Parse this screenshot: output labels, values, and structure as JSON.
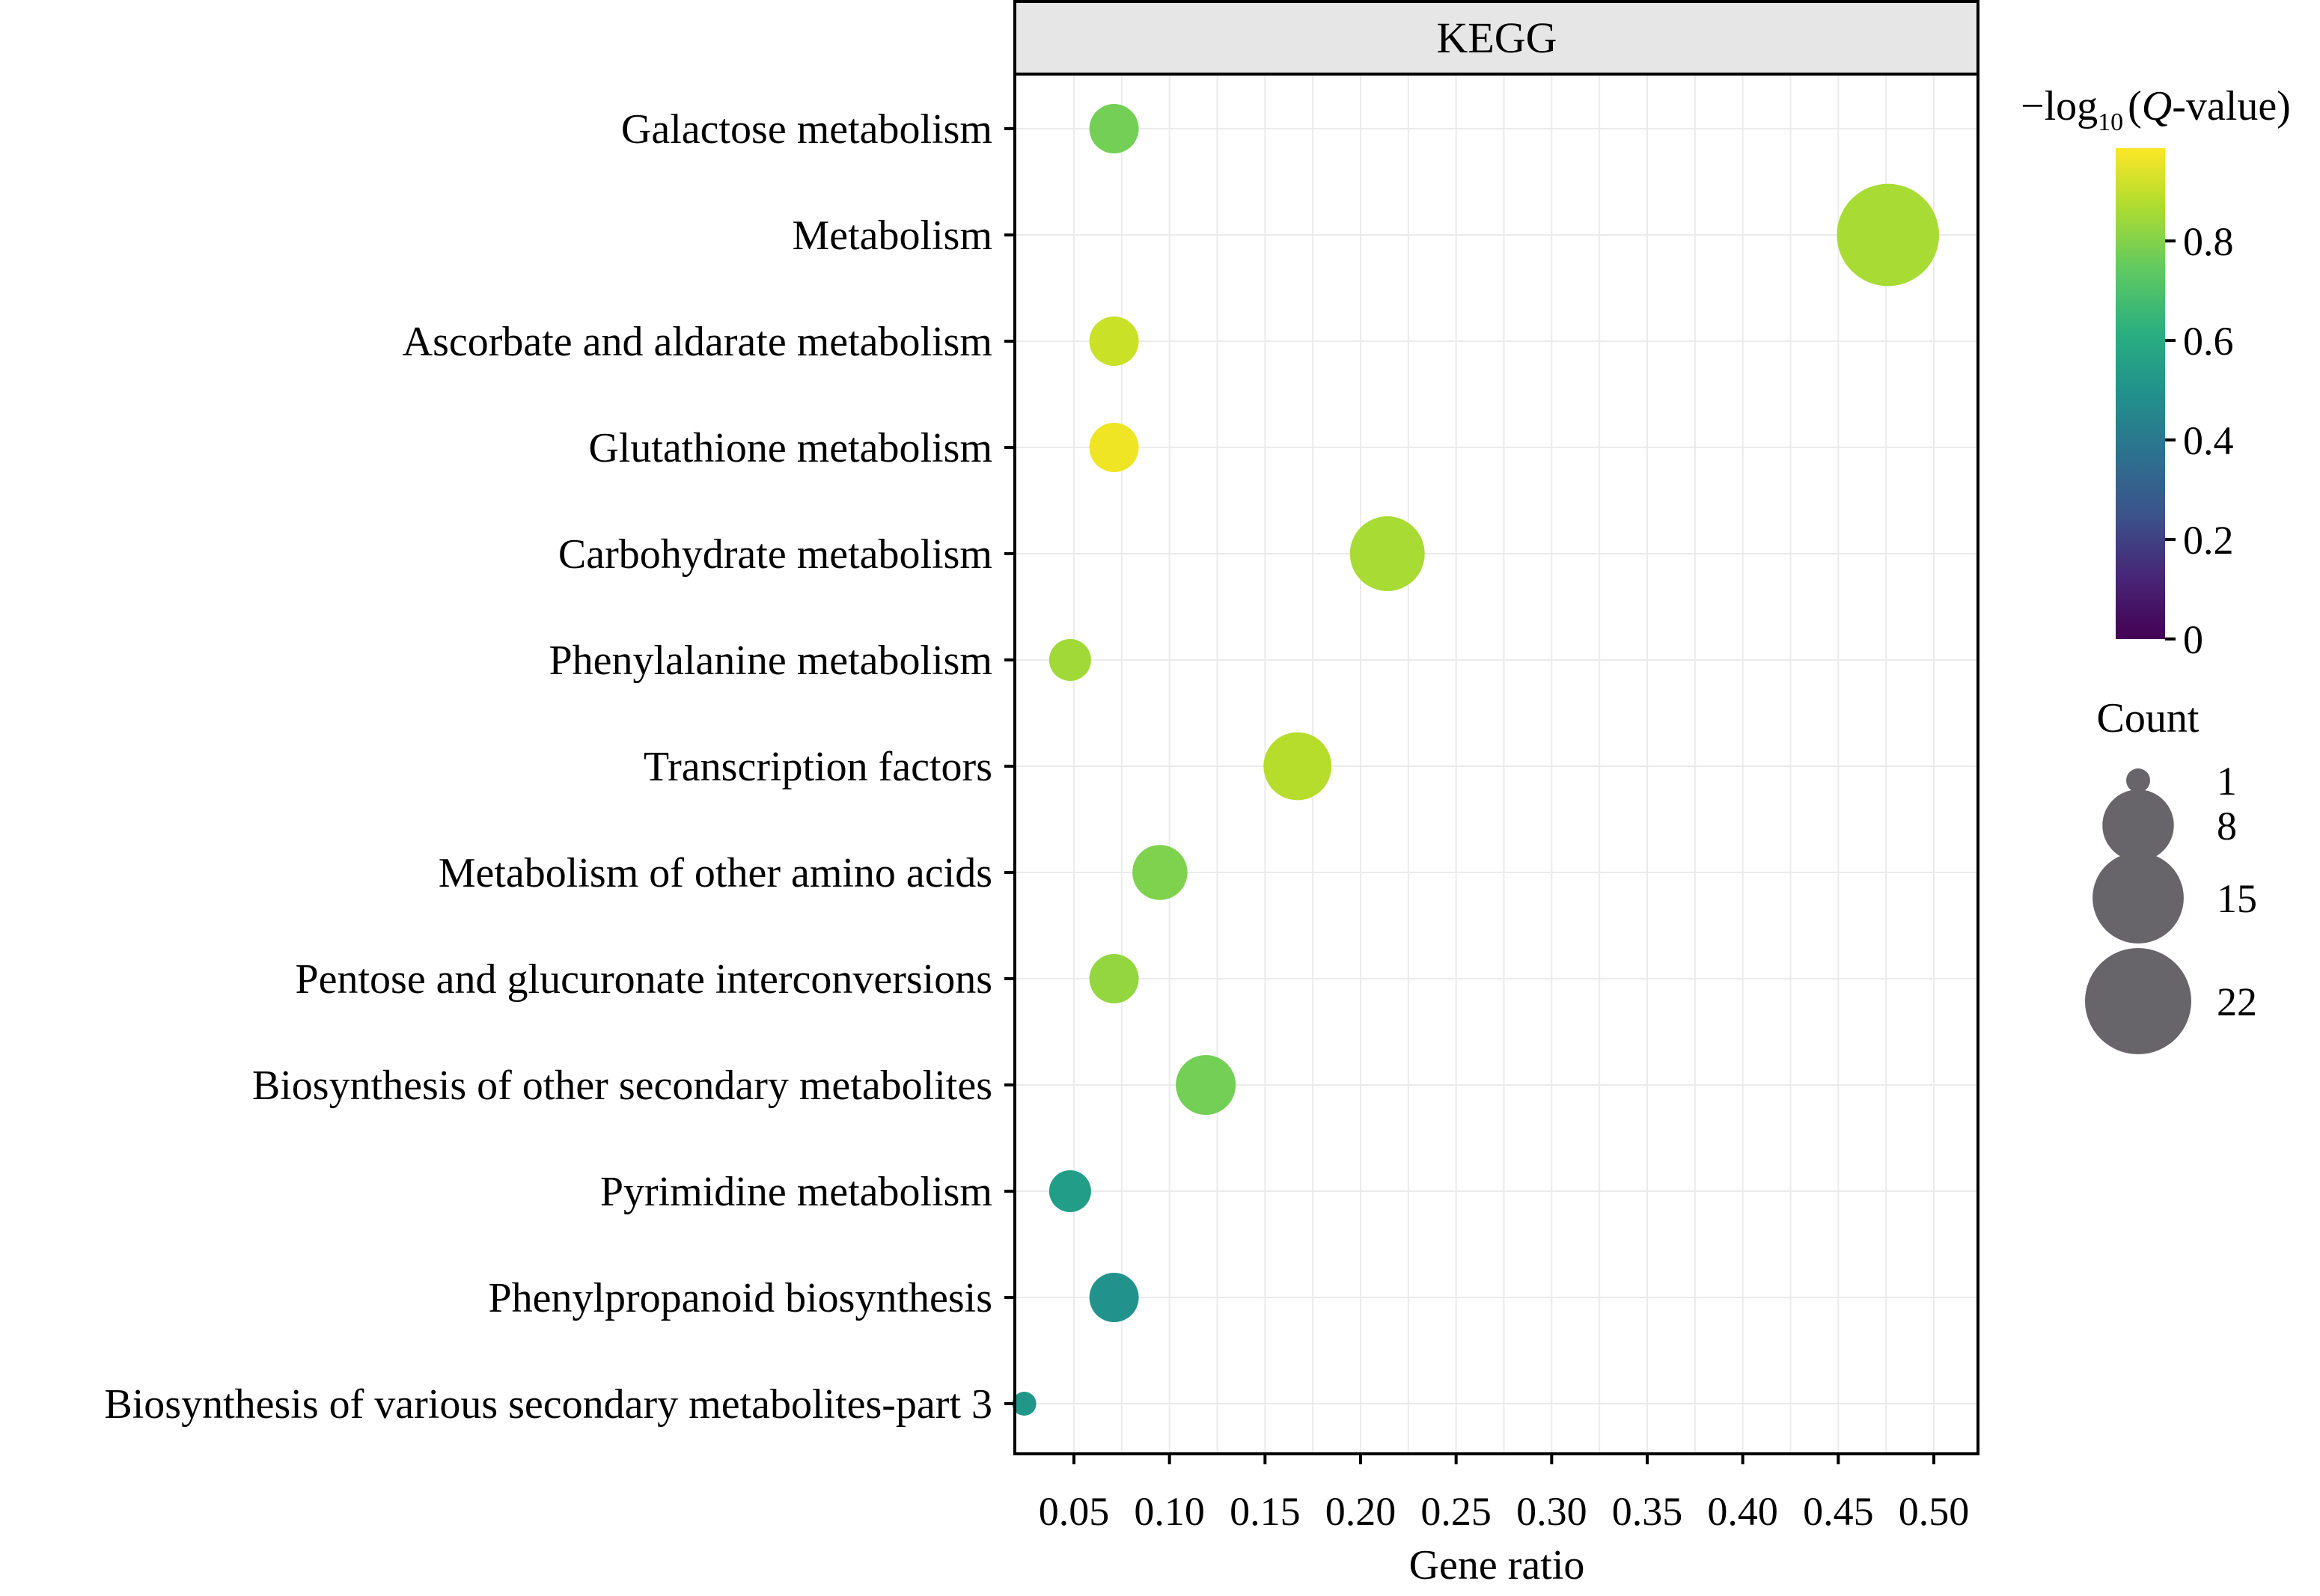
{
  "chart_data": {
    "type": "scatter",
    "subtype": "bubble",
    "facet_title": "KEGG",
    "xlabel": "Gene ratio",
    "ylabel": "",
    "xlim": [
      0.018,
      0.522
    ],
    "x_ticks": [
      0.05,
      0.1,
      0.15,
      0.2,
      0.25,
      0.3,
      0.35,
      0.4,
      0.45,
      0.5
    ],
    "x_tick_labels": [
      "0.05",
      "0.10",
      "0.15",
      "0.20",
      "0.25",
      "0.30",
      "0.35",
      "0.40",
      "0.45",
      "0.50"
    ],
    "grid": true,
    "categories": [
      "Galactose metabolism",
      "Metabolism",
      "Ascorbate and aldarate metabolism",
      "Glutathione metabolism",
      "Carbohydrate metabolism",
      "Phenylalanine metabolism",
      "Transcription factors",
      "Metabolism of other amino acids",
      "Pentose and glucuronate interconversions",
      "Biosynthesis of other secondary metabolites",
      "Pyrimidine metabolism",
      "Phenylpropanoid biosynthesis",
      "Biosynthesis of various secondary metabolites-part 3"
    ],
    "points": [
      {
        "category": "Galactose metabolism",
        "gene_ratio": 0.071,
        "count": 3,
        "neg_log10_q": 0.78
      },
      {
        "category": "Metabolism",
        "gene_ratio": 0.476,
        "count": 20,
        "neg_log10_q": 0.86
      },
      {
        "category": "Ascorbate and aldarate metabolism",
        "gene_ratio": 0.071,
        "count": 3,
        "neg_log10_q": 0.91
      },
      {
        "category": "Glutathione metabolism",
        "gene_ratio": 0.071,
        "count": 3,
        "neg_log10_q": 0.97
      },
      {
        "category": "Carbohydrate metabolism",
        "gene_ratio": 0.214,
        "count": 9,
        "neg_log10_q": 0.86
      },
      {
        "category": "Phenylalanine metabolism",
        "gene_ratio": 0.048,
        "count": 2,
        "neg_log10_q": 0.85
      },
      {
        "category": "Transcription factors",
        "gene_ratio": 0.167,
        "count": 7,
        "neg_log10_q": 0.88
      },
      {
        "category": "Metabolism of other amino acids",
        "gene_ratio": 0.095,
        "count": 4,
        "neg_log10_q": 0.8
      },
      {
        "category": "Pentose and glucuronate interconversions",
        "gene_ratio": 0.071,
        "count": 3,
        "neg_log10_q": 0.83
      },
      {
        "category": "Biosynthesis of other secondary metabolites",
        "gene_ratio": 0.119,
        "count": 5,
        "neg_log10_q": 0.78
      },
      {
        "category": "Pyrimidine metabolism",
        "gene_ratio": 0.048,
        "count": 2,
        "neg_log10_q": 0.55
      },
      {
        "category": "Phenylpropanoid biosynthesis",
        "gene_ratio": 0.071,
        "count": 3,
        "neg_log10_q": 0.5
      },
      {
        "category": "Biosynthesis of various secondary metabolites-part 3",
        "gene_ratio": 0.024,
        "count": 1,
        "neg_log10_q": 0.52
      }
    ],
    "color_legend": {
      "title_prefix": "−log",
      "title_subscript": "10",
      "title_paren_open": "(",
      "title_italic": "Q",
      "title_suffix": "-value)",
      "range": [
        0,
        0.99
      ],
      "ticks": [
        0,
        0.2,
        0.4,
        0.6,
        0.8
      ],
      "tick_labels": [
        "0",
        "0.2",
        "0.4",
        "0.6",
        "0.8"
      ],
      "colormap": "viridis",
      "position": "right"
    },
    "size_legend": {
      "title": "Count",
      "values": [
        1,
        8,
        15,
        22
      ],
      "labels": [
        "1",
        "8",
        "15",
        "22"
      ],
      "color": "#67656a",
      "position": "right"
    }
  }
}
